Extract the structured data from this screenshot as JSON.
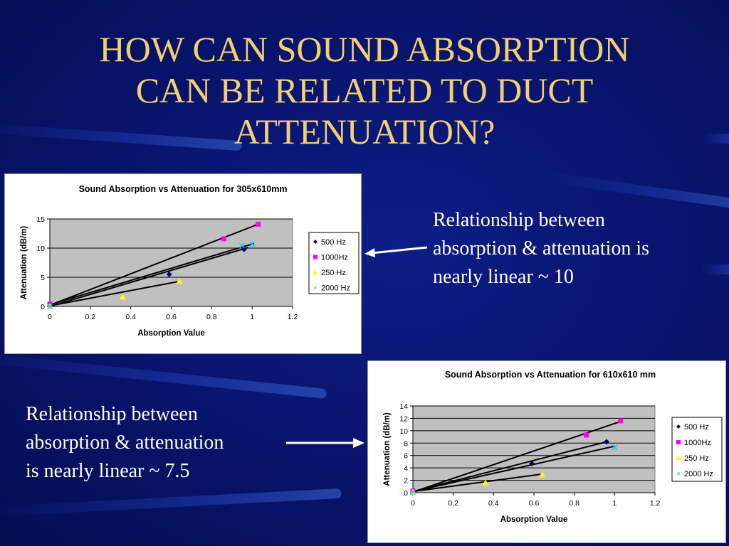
{
  "slide": {
    "title_lines": [
      "HOW CAN SOUND ABSORPTION",
      "CAN BE RELATED TO DUCT",
      "ATTENUATION?"
    ],
    "caption_top": [
      "Relationship between",
      "absorption & attenuation is",
      "nearly linear ~ 10"
    ],
    "caption_bottom": [
      "Relationship between",
      "absorption & attenuation",
      "is nearly linear ~ 7.5"
    ],
    "colors": {
      "title": "#f4cf6f",
      "background": "#091570",
      "text": "#ffffff"
    }
  },
  "chart_data": [
    {
      "type": "scatter",
      "title": "Sound Absorption vs Attenuation for 305x610mm",
      "xlabel": "Absorption Value",
      "ylabel": "Attenuation (dB/m)",
      "xlim": [
        0,
        1.2
      ],
      "ylim": [
        0,
        15
      ],
      "xticks": [
        "0",
        "0.2",
        "0.4",
        "0.6",
        "0.8",
        "1",
        "1.2"
      ],
      "yticks": [
        "0",
        "5",
        "10",
        "15"
      ],
      "grid": true,
      "legend": "right",
      "series": [
        {
          "name": "500 Hz",
          "marker": "diamond",
          "color": "#000080",
          "points": [
            [
              0,
              0
            ],
            [
              0.59,
              5.5
            ],
            [
              0.96,
              9.8
            ]
          ],
          "trend": [
            [
              0,
              0
            ],
            [
              0.98,
              10.1
            ]
          ]
        },
        {
          "name": "1000Hz",
          "marker": "square",
          "color": "#ff00ff",
          "points": [
            [
              0,
              0.4
            ],
            [
              0.86,
              11.6
            ],
            [
              1.03,
              14.1
            ]
          ],
          "trend": [
            [
              0,
              0.2
            ],
            [
              1.03,
              14.1
            ]
          ]
        },
        {
          "name": "250 Hz",
          "marker": "triangle",
          "color": "#ffff00",
          "points": [
            [
              0,
              0
            ],
            [
              0.36,
              1.6
            ],
            [
              0.64,
              4.3
            ]
          ],
          "trend": [
            [
              0,
              0.1
            ],
            [
              0.64,
              4.3
            ]
          ]
        },
        {
          "name": "2000 Hz",
          "marker": "x",
          "color": "#00ccff",
          "points": [
            [
              0,
              0
            ],
            [
              0.95,
              10.4
            ],
            [
              1.0,
              10.7
            ]
          ],
          "trend": [
            [
              0,
              0.3
            ],
            [
              1.01,
              10.8
            ]
          ]
        }
      ]
    },
    {
      "type": "scatter",
      "title": "Sound Absorption vs Attenuation for 610x610 mm",
      "xlabel": "Absorption Value",
      "ylabel": "Attenuation (dB/m)",
      "xlim": [
        0,
        1.2
      ],
      "ylim": [
        0,
        14
      ],
      "xticks": [
        "0",
        "0.2",
        "0.4",
        "0.6",
        "0.8",
        "1",
        "1.2"
      ],
      "yticks": [
        "0",
        "2",
        "4",
        "6",
        "8",
        "10",
        "12",
        "14"
      ],
      "grid": true,
      "legend": "right",
      "series": [
        {
          "name": "500 Hz",
          "marker": "diamond",
          "color": "#000080",
          "points": [
            [
              0,
              0.2
            ],
            [
              0.59,
              4.7
            ],
            [
              0.96,
              8.2
            ]
          ],
          "trend": [
            [
              0,
              0.2
            ],
            [
              0.97,
              8.3
            ]
          ]
        },
        {
          "name": "1000Hz",
          "marker": "square",
          "color": "#ff00ff",
          "points": [
            [
              0,
              0.3
            ],
            [
              0.86,
              9.3
            ],
            [
              1.03,
              11.6
            ]
          ],
          "trend": [
            [
              0,
              0.1
            ],
            [
              1.03,
              11.5
            ]
          ]
        },
        {
          "name": "250 Hz",
          "marker": "triangle",
          "color": "#ffff00",
          "points": [
            [
              0,
              0.1
            ],
            [
              0.36,
              1.6
            ],
            [
              0.64,
              2.9
            ]
          ],
          "trend": [
            [
              0,
              0.2
            ],
            [
              0.64,
              3.0
            ]
          ]
        },
        {
          "name": "2000 Hz",
          "marker": "x",
          "color": "#00ccff",
          "points": [
            [
              0,
              0.1
            ],
            [
              1.0,
              7.3
            ]
          ],
          "trend": [
            [
              0,
              0.2
            ],
            [
              1.0,
              7.5
            ]
          ]
        }
      ]
    }
  ]
}
